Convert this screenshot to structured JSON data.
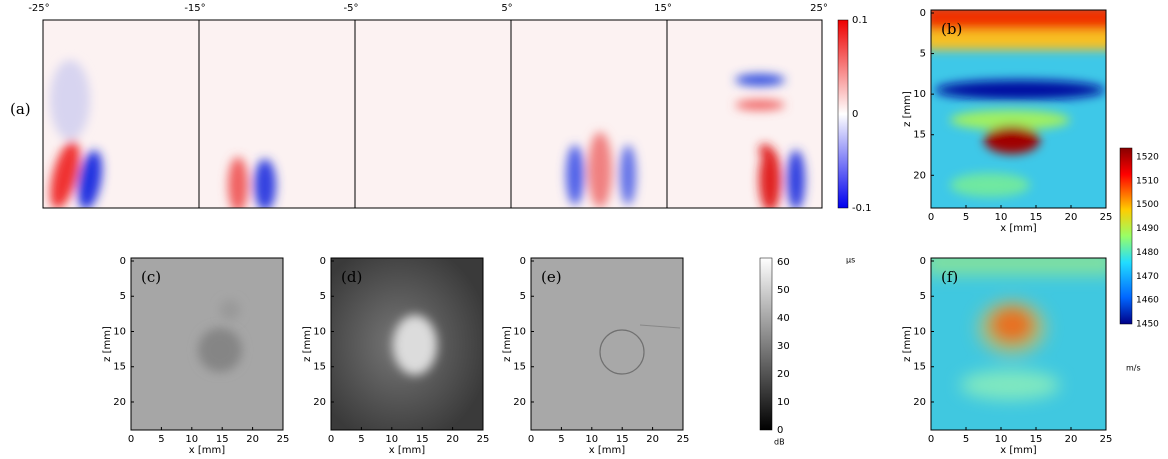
{
  "panel_a": {
    "label": "(a)",
    "angles": [
      "-25°",
      "-15°",
      "-5°",
      "5°",
      "15°",
      "25°"
    ],
    "colorbar": {
      "ticks": [
        "0.1",
        "0",
        "-0.1"
      ],
      "unit": "μs"
    }
  },
  "panels": [
    {
      "label": "(b)",
      "xlabel": "x [mm]",
      "ylabel": "z [mm]",
      "xticks": [
        0,
        5,
        10,
        15,
        20,
        25
      ],
      "yticks": [
        0,
        5,
        10,
        15,
        20
      ]
    },
    {
      "label": "(c)",
      "xlabel": "x [mm]",
      "ylabel": "z [mm]",
      "xticks": [
        0,
        5,
        10,
        15,
        20,
        25
      ],
      "yticks": [
        0,
        5,
        10,
        15,
        20
      ]
    },
    {
      "label": "(d)",
      "xlabel": "x [mm]",
      "ylabel": "z [mm]",
      "xticks": [
        0,
        5,
        10,
        15,
        20,
        25
      ],
      "yticks": [
        0,
        5,
        10,
        15,
        20
      ]
    },
    {
      "label": "(e)",
      "xlabel": "x [mm]",
      "ylabel": "z [mm]",
      "xticks": [
        0,
        5,
        10,
        15,
        20,
        25
      ],
      "yticks": [
        0,
        5,
        10,
        15,
        20
      ]
    },
    {
      "label": "(f)",
      "xlabel": "x [mm]",
      "ylabel": "z [mm]",
      "xticks": [
        0,
        5,
        10,
        15,
        20,
        25
      ],
      "yticks": [
        0,
        5,
        10,
        15,
        20
      ]
    }
  ],
  "colorbar_db": {
    "ticks": [
      60,
      50,
      40,
      30,
      20,
      10,
      0
    ],
    "unit": "dB"
  },
  "colorbar_speed": {
    "ticks": [
      1520,
      1510,
      1500,
      1490,
      1480,
      1470,
      1460,
      1450
    ],
    "unit": "m/s"
  }
}
